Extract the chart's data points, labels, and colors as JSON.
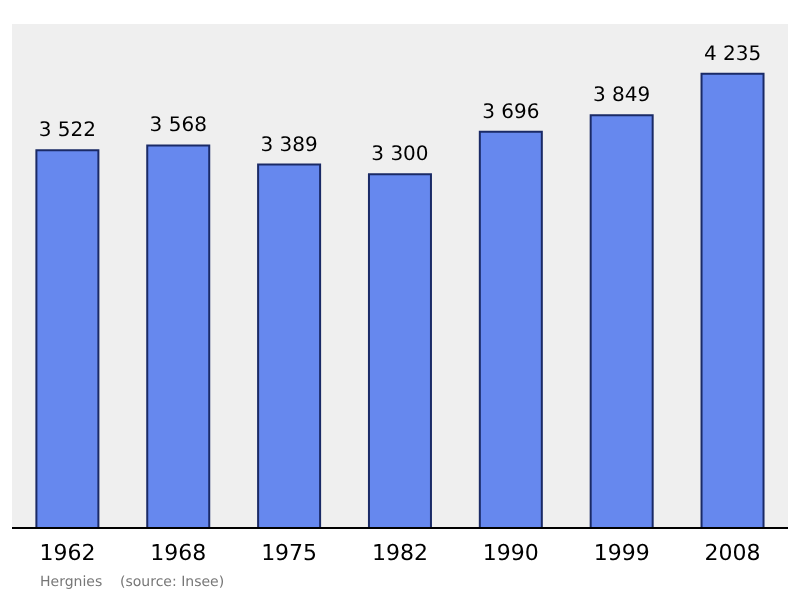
{
  "chart_data": {
    "type": "bar",
    "categories": [
      "1962",
      "1968",
      "1975",
      "1982",
      "1990",
      "1999",
      "2008"
    ],
    "values": [
      3522,
      3568,
      3389,
      3300,
      3696,
      3849,
      4235
    ],
    "value_labels": [
      "3 522",
      "3 568",
      "3 389",
      "3 300",
      "3 696",
      "3 849",
      "4 235"
    ],
    "color": "#6688ee",
    "ylim": [
      0,
      4700
    ],
    "tick_labels": "x",
    "annotations": [
      "Hergnies    (source: Insee)"
    ]
  }
}
